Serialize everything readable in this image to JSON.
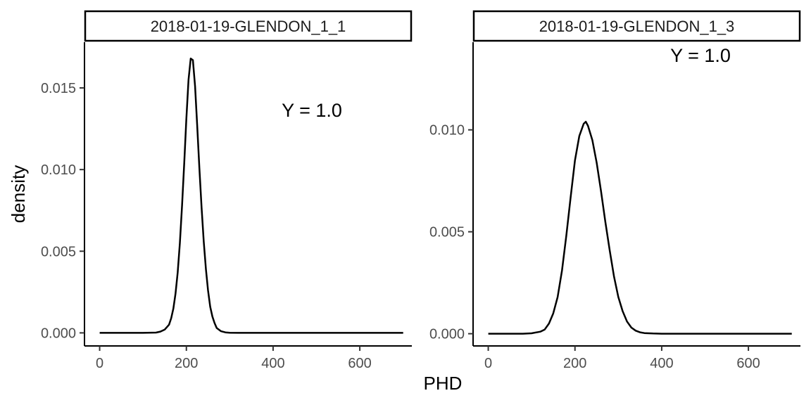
{
  "chart_data": {
    "type": "line",
    "xlabel": "PHD",
    "ylabel": "density",
    "grid": false,
    "panels": [
      {
        "strip_label": "2018-01-19-GLENDON_1_1",
        "annotation": "Y =  1.0",
        "xlim": [
          -35,
          720
        ],
        "ylim": [
          -0.0008,
          0.0178
        ],
        "x_ticks": [
          0,
          200,
          400,
          600
        ],
        "x_tick_labels": [
          "0",
          "200",
          "400",
          "600"
        ],
        "y_ticks": [
          0,
          0.005,
          0.01,
          0.015
        ],
        "y_tick_labels": [
          "0.000",
          "0.005",
          "0.010",
          "0.015"
        ],
        "series": [
          {
            "x": [
              0,
              100,
              130,
              140,
              150,
              160,
              165,
              170,
              175,
              180,
              185,
              190,
              195,
              200,
              205,
              210,
              215,
              220,
              225,
              230,
              235,
              240,
              245,
              250,
              255,
              260,
              265,
              270,
              280,
              290,
              300,
              320,
              350,
              400,
              500,
              600,
              700
            ],
            "y": [
              0,
              0,
              2e-05,
              8e-05,
              0.0002,
              0.0005,
              0.0009,
              0.0015,
              0.0024,
              0.0037,
              0.0055,
              0.0078,
              0.0104,
              0.0131,
              0.0155,
              0.0168,
              0.0167,
              0.0151,
              0.0127,
              0.0101,
              0.0077,
              0.0056,
              0.0039,
              0.0026,
              0.0016,
              0.001,
              0.0006,
              0.0003,
              0.0001,
              3e-05,
              1e-05,
              0,
              0,
              0,
              0,
              0,
              0
            ]
          }
        ]
      },
      {
        "strip_label": "2018-01-19-GLENDON_1_3",
        "annotation": "Y =  1.0",
        "xlim": [
          -35,
          720
        ],
        "ylim": [
          -0.0006,
          0.0143
        ],
        "x_ticks": [
          0,
          200,
          400,
          600
        ],
        "x_tick_labels": [
          "0",
          "200",
          "400",
          "600"
        ],
        "y_ticks": [
          0,
          0.005,
          0.01
        ],
        "y_tick_labels": [
          "0.000",
          "0.005",
          "0.010"
        ],
        "series": [
          {
            "x": [
              0,
              80,
              100,
              120,
              130,
              140,
              150,
              160,
              170,
              180,
              190,
              200,
              210,
              220,
              225,
              230,
              240,
              250,
              260,
              270,
              280,
              290,
              300,
              310,
              320,
              330,
              340,
              350,
              360,
              380,
              400,
              450,
              500,
              600,
              700
            ],
            "y": [
              0,
              0,
              2e-05,
              0.0001,
              0.0002,
              0.0005,
              0.001,
              0.0018,
              0.0031,
              0.0048,
              0.0067,
              0.0085,
              0.0097,
              0.0103,
              0.0104,
              0.0102,
              0.0095,
              0.0084,
              0.007,
              0.0055,
              0.0041,
              0.0028,
              0.0018,
              0.0011,
              0.0006,
              0.0003,
              0.00015,
              7e-05,
              3e-05,
              1e-05,
              0,
              0,
              0,
              0,
              0
            ]
          }
        ]
      }
    ]
  }
}
